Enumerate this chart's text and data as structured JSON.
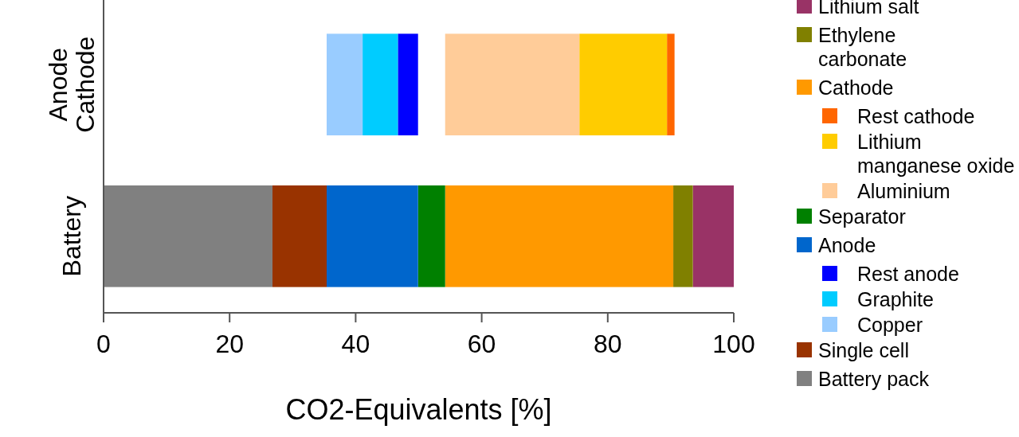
{
  "chart_data": {
    "type": "bar",
    "orientation": "horizontal",
    "xlabel": "CO2-Equivalents [%]",
    "categories": [
      "Anode Cathode",
      "Battery"
    ],
    "xlim": [
      0,
      100
    ],
    "xticks": [
      0,
      20,
      40,
      60,
      80,
      100
    ],
    "legend": "right",
    "series": [
      {
        "name": "Lithium salt",
        "color": "#993366",
        "values": [
          null,
          6.5
        ],
        "base": [
          null,
          93.5
        ]
      },
      {
        "name": "Ethylene carbonate",
        "color": "#808000",
        "values": [
          null,
          3.1
        ],
        "base": [
          null,
          90.4
        ]
      },
      {
        "name": "Cathode",
        "color": "#ff9900",
        "values": [
          null,
          36.2
        ],
        "base": [
          null,
          54.2
        ]
      },
      {
        "name": "Rest cathode",
        "color": "#ff6600",
        "values": [
          1.2,
          null
        ],
        "base": [
          89.4,
          null
        ]
      },
      {
        "name": "Lithium manganese oxide",
        "color": "#ffcc00",
        "values": [
          13.9,
          null
        ],
        "base": [
          75.5,
          null
        ]
      },
      {
        "name": "Aluminium",
        "color": "#ffcc99",
        "values": [
          21.3,
          null
        ],
        "base": [
          54.2,
          null
        ]
      },
      {
        "name": "Separator",
        "color": "#008000",
        "values": [
          null,
          4.3
        ],
        "base": [
          null,
          49.9
        ]
      },
      {
        "name": "Anode",
        "color": "#0066cc",
        "values": [
          null,
          14.5
        ],
        "base": [
          null,
          35.4
        ]
      },
      {
        "name": "Rest anode",
        "color": "#0000ff",
        "values": [
          3.2,
          null
        ],
        "base": [
          46.7,
          null
        ]
      },
      {
        "name": "Graphite",
        "color": "#00ccff",
        "values": [
          5.6,
          null
        ],
        "base": [
          41.1,
          null
        ]
      },
      {
        "name": "Copper",
        "color": "#99ccff",
        "values": [
          5.7,
          null
        ],
        "base": [
          35.4,
          null
        ]
      },
      {
        "name": "Single cell",
        "color": "#993300",
        "values": [
          null,
          8.6
        ],
        "base": [
          null,
          26.8
        ]
      },
      {
        "name": "Battery pack",
        "color": "#808080",
        "values": [
          null,
          26.8
        ],
        "base": [
          null,
          0
        ]
      }
    ]
  }
}
